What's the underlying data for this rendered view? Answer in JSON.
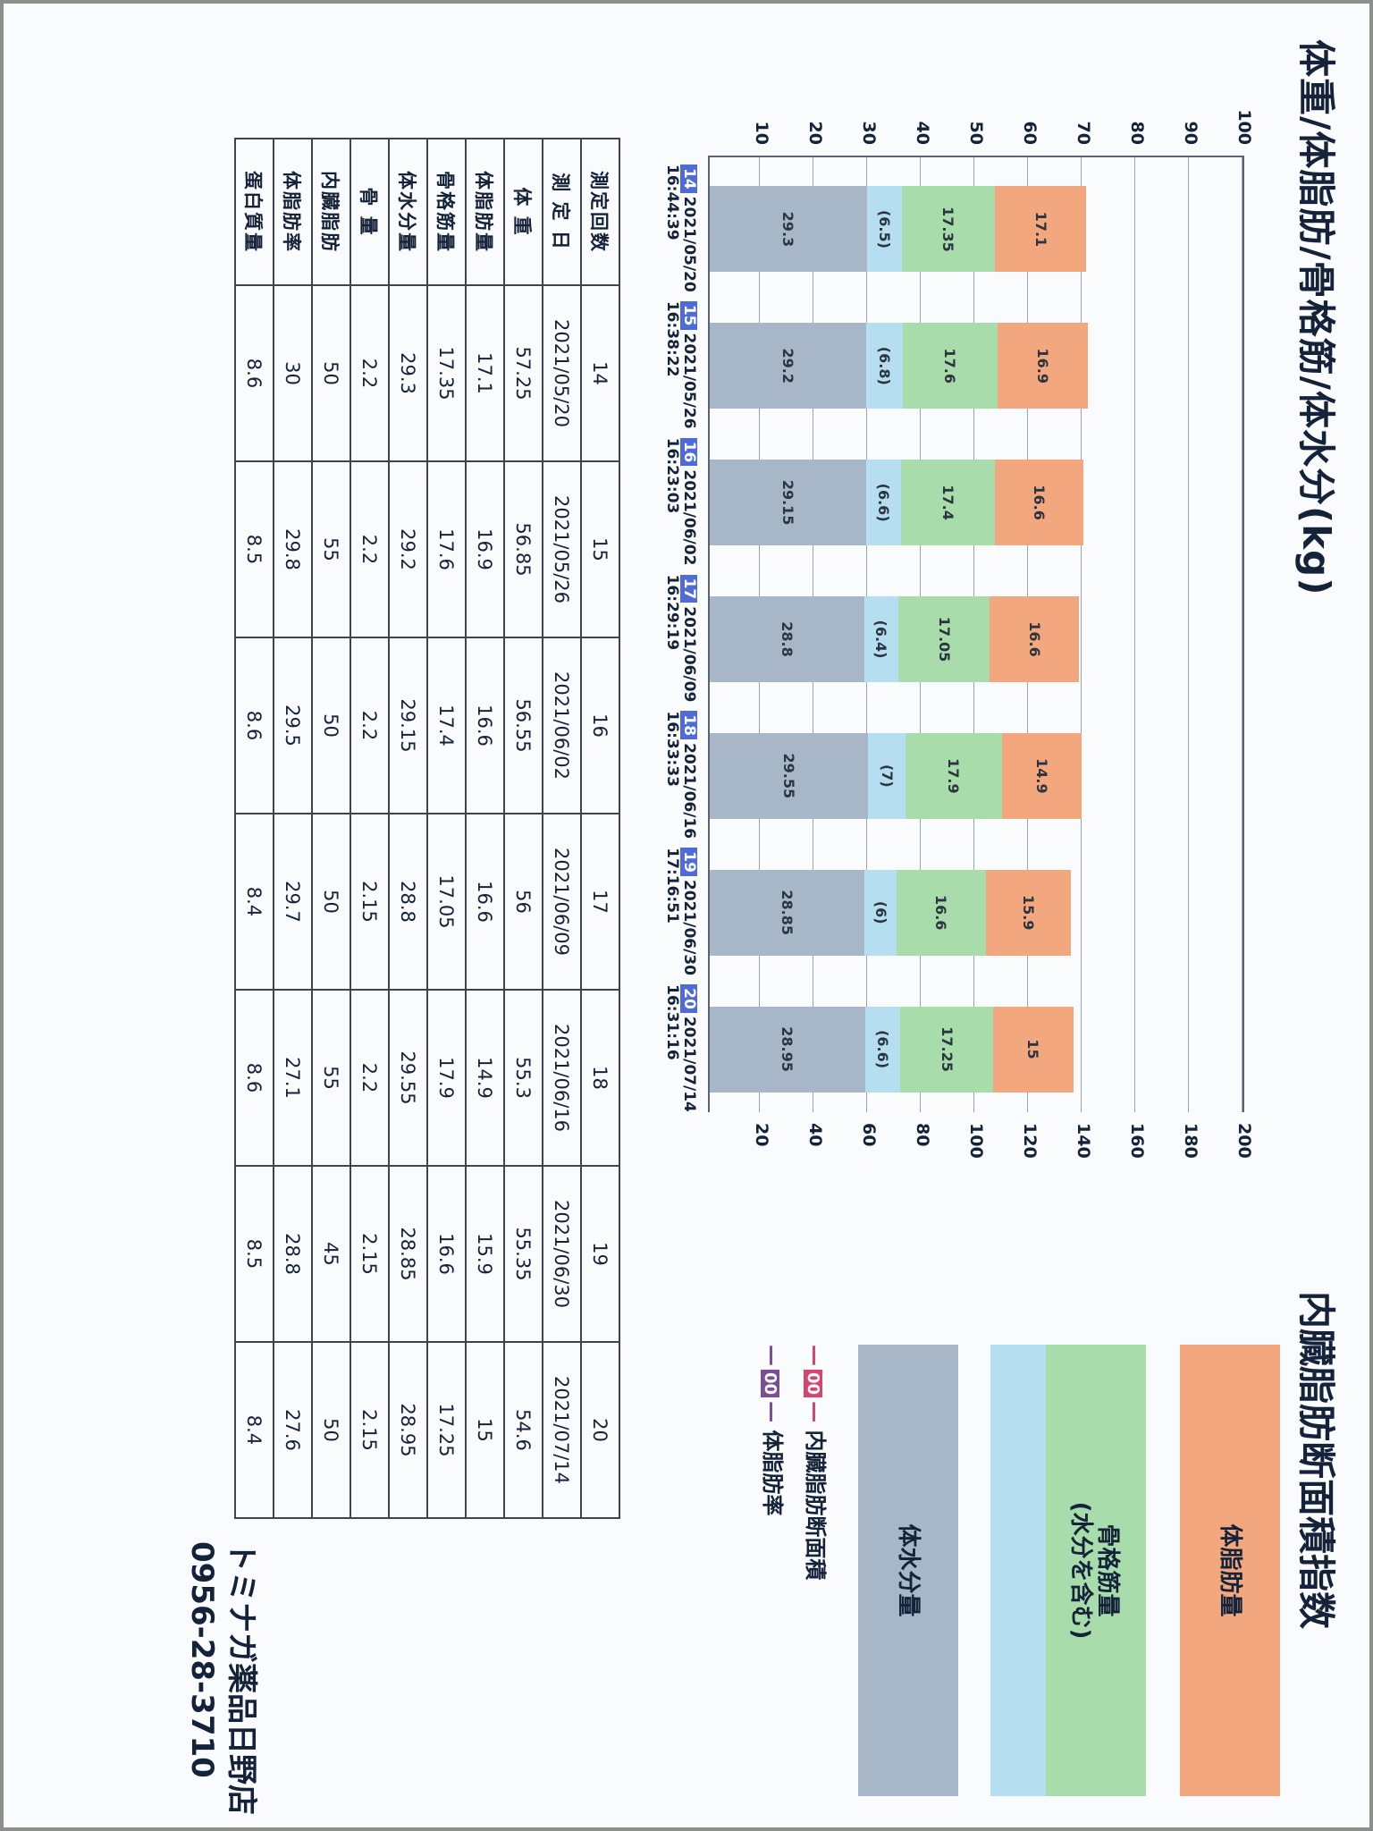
{
  "titles": {
    "left": "体重/体脂肪/骨格筋/体水分(kg)",
    "right": "内臓脂肪断面積指数"
  },
  "legend": {
    "fat": "体脂肪量",
    "muscle_line1": "骨格筋量",
    "muscle_line2": "(水分を含む)",
    "water": "体水分量",
    "visceral_chip": "00",
    "visceral": "内臓脂肪断面積",
    "fatrate_chip": "00",
    "fatrate": "体脂肪率"
  },
  "colors": {
    "fat": "#f2a77e",
    "muscle": "#a8dcaa",
    "muscle_water": "#b5dff0",
    "water": "#a7b7c7",
    "visceral": "#d6446f",
    "fatrate": "#7a4f9a",
    "badge": "#4f6bd8"
  },
  "chart_data": {
    "type": "bar",
    "stacked": true,
    "yticks_left": [
      "100",
      "90",
      "80",
      "70",
      "60",
      "50",
      "40",
      "30",
      "20",
      "10"
    ],
    "yticks_right": [
      "200",
      "180",
      "160",
      "140",
      "120",
      "100",
      "80",
      "60",
      "40",
      "20"
    ],
    "ylim_left": [
      0,
      100
    ],
    "ylim_right": [
      0,
      200
    ],
    "categories": [
      {
        "num": "14",
        "date": "2021/05/20",
        "time": "16:44:39"
      },
      {
        "num": "15",
        "date": "2021/05/26",
        "time": "16:38:22"
      },
      {
        "num": "16",
        "date": "2021/06/02",
        "time": "16:23:03"
      },
      {
        "num": "17",
        "date": "2021/06/09",
        "time": "16:29:19"
      },
      {
        "num": "18",
        "date": "2021/06/16",
        "time": "16:33:33"
      },
      {
        "num": "19",
        "date": "2021/06/30",
        "time": "17:16:51"
      },
      {
        "num": "20",
        "date": "2021/07/14",
        "time": "16:31:16"
      }
    ],
    "water": [
      29.3,
      29.2,
      29.15,
      28.8,
      29.55,
      28.85,
      28.95
    ],
    "water_labels": [
      "29.3",
      "29.2",
      "29.15",
      "28.8",
      "29.55",
      "28.85",
      "28.95"
    ],
    "muscle_water": [
      6.5,
      6.8,
      6.6,
      6.4,
      7,
      6,
      6.6
    ],
    "muscle_water_labels": [
      "(6.5)",
      "(6.8)",
      "(6.6)",
      "(6.4)",
      "(7)",
      "(6)",
      "(6.6)"
    ],
    "muscle": [
      17.35,
      17.6,
      17.4,
      17.05,
      17.9,
      16.6,
      17.25
    ],
    "muscle_labels": [
      "17.35",
      "17.6",
      "17.4",
      "17.05",
      "17.9",
      "16.6",
      "17.25"
    ],
    "fat": [
      17.1,
      16.9,
      16.6,
      16.6,
      14.9,
      15.9,
      15
    ],
    "fat_labels": [
      "17.1",
      "16.9",
      "16.6",
      "16.6",
      "14.9",
      "15.9",
      "15"
    ]
  },
  "table": {
    "rows": [
      {
        "label": "測定回数",
        "values": [
          "14",
          "15",
          "16",
          "17",
          "18",
          "19",
          "20"
        ]
      },
      {
        "label": "測 定 日",
        "values": [
          "2021/05/20",
          "2021/05/26",
          "2021/06/02",
          "2021/06/09",
          "2021/06/16",
          "2021/06/30",
          "2021/07/14"
        ]
      },
      {
        "label": "体 重",
        "values": [
          "57.25",
          "56.85",
          "56.55",
          "56",
          "55.3",
          "55.35",
          "54.6"
        ]
      },
      {
        "label": "体脂肪量",
        "values": [
          "17.1",
          "16.9",
          "16.6",
          "16.6",
          "14.9",
          "15.9",
          "15"
        ]
      },
      {
        "label": "骨格筋量",
        "values": [
          "17.35",
          "17.6",
          "17.4",
          "17.05",
          "17.9",
          "16.6",
          "17.25"
        ]
      },
      {
        "label": "体水分量",
        "values": [
          "29.3",
          "29.2",
          "29.15",
          "28.8",
          "29.55",
          "28.85",
          "28.95"
        ]
      },
      {
        "label": "骨 量",
        "values": [
          "2.2",
          "2.2",
          "2.2",
          "2.15",
          "2.2",
          "2.15",
          "2.15"
        ]
      },
      {
        "label": "内臓脂肪",
        "values": [
          "50",
          "55",
          "50",
          "50",
          "55",
          "45",
          "50"
        ]
      },
      {
        "label": "体脂肪率",
        "values": [
          "30",
          "29.8",
          "29.5",
          "29.7",
          "27.1",
          "28.8",
          "27.6"
        ]
      },
      {
        "label": "蛋白質量",
        "values": [
          "8.6",
          "8.5",
          "8.6",
          "8.4",
          "8.6",
          "8.5",
          "8.4"
        ]
      }
    ]
  },
  "store": {
    "name": "トミナガ薬品日野店",
    "phone": "0956-28-3710"
  }
}
